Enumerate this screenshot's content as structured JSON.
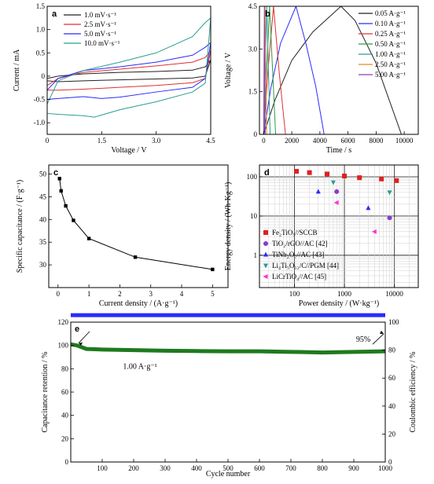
{
  "chart_data": [
    {
      "panel": "a",
      "type": "line",
      "xlabel": "Voltage / V",
      "ylabel": "Current / mA",
      "xlim": [
        0,
        4.5
      ],
      "ylim": [
        -1.25,
        1.5
      ],
      "xticks": [
        0,
        1.5,
        3.0,
        4.5
      ],
      "yticks": [
        -1.0,
        -0.5,
        0,
        0.5,
        1.0,
        1.5
      ],
      "xtick_labels": [
        "0",
        "1.5",
        "3.0",
        "4.5"
      ],
      "ytick_labels": [
        "-1.0",
        "-0.5",
        "0",
        "0.5",
        "1.0",
        "1.5"
      ],
      "legend_position": "top-left",
      "series": [
        {
          "name": "1.0 mV·s⁻¹",
          "color": "#222222",
          "upper": [
            [
              0.0,
              -0.05
            ],
            [
              0.3,
              0.0
            ],
            [
              1.0,
              0.05
            ],
            [
              2.0,
              0.08
            ],
            [
              3.0,
              0.1
            ],
            [
              4.0,
              0.13
            ],
            [
              4.35,
              0.2
            ],
            [
              4.5,
              0.35
            ]
          ],
          "lower": [
            [
              0.0,
              -0.1
            ],
            [
              0.3,
              -0.12
            ],
            [
              1.0,
              -0.1
            ],
            [
              2.0,
              -0.08
            ],
            [
              3.0,
              -0.06
            ],
            [
              4.0,
              -0.04
            ],
            [
              4.35,
              0.0
            ],
            [
              4.5,
              0.35
            ]
          ]
        },
        {
          "name": "2.5 mV·s⁻¹",
          "color": "#e03030",
          "upper": [
            [
              0.0,
              -0.2
            ],
            [
              0.3,
              -0.05
            ],
            [
              1.0,
              0.08
            ],
            [
              2.0,
              0.15
            ],
            [
              3.0,
              0.22
            ],
            [
              4.0,
              0.3
            ],
            [
              4.35,
              0.4
            ],
            [
              4.5,
              0.55
            ]
          ],
          "lower": [
            [
              0.0,
              -0.3
            ],
            [
              0.3,
              -0.3
            ],
            [
              1.0,
              -0.28
            ],
            [
              2.0,
              -0.24
            ],
            [
              3.0,
              -0.2
            ],
            [
              4.0,
              -0.14
            ],
            [
              4.35,
              -0.05
            ],
            [
              4.5,
              0.55
            ]
          ]
        },
        {
          "name": "5.0 mV·s⁻¹",
          "color": "#2a2aff",
          "upper": [
            [
              0.0,
              -0.3
            ],
            [
              0.3,
              -0.05
            ],
            [
              1.0,
              0.12
            ],
            [
              2.0,
              0.2
            ],
            [
              3.0,
              0.3
            ],
            [
              4.0,
              0.45
            ],
            [
              4.35,
              0.62
            ],
            [
              4.5,
              0.72
            ]
          ],
          "lower": [
            [
              0.0,
              -0.5
            ],
            [
              0.3,
              -0.48
            ],
            [
              1.0,
              -0.44
            ],
            [
              1.5,
              -0.48
            ],
            [
              2.0,
              -0.45
            ],
            [
              3.0,
              -0.34
            ],
            [
              4.0,
              -0.24
            ],
            [
              4.35,
              -0.05
            ],
            [
              4.5,
              0.72
            ]
          ]
        },
        {
          "name": "10.0 mV·s⁻¹",
          "color": "#2a9d8f",
          "upper": [
            [
              0.0,
              -0.6
            ],
            [
              0.3,
              -0.1
            ],
            [
              1.0,
              0.12
            ],
            [
              2.0,
              0.3
            ],
            [
              3.0,
              0.5
            ],
            [
              4.0,
              0.85
            ],
            [
              4.35,
              1.15
            ],
            [
              4.5,
              1.25
            ]
          ],
          "lower": [
            [
              0.0,
              -0.8
            ],
            [
              0.3,
              -0.82
            ],
            [
              1.0,
              -0.85
            ],
            [
              1.3,
              -0.88
            ],
            [
              2.0,
              -0.72
            ],
            [
              3.0,
              -0.55
            ],
            [
              4.0,
              -0.34
            ],
            [
              4.35,
              -0.15
            ],
            [
              4.5,
              1.25
            ]
          ]
        }
      ]
    },
    {
      "panel": "b",
      "type": "line",
      "xlabel": "Time / s",
      "ylabel": "Voltage / V",
      "xlim": [
        -300,
        11000
      ],
      "ylim": [
        0,
        4.5
      ],
      "xticks": [
        0,
        2000,
        4000,
        6000,
        8000,
        10000
      ],
      "yticks": [
        0,
        1.5,
        3.0,
        4.5
      ],
      "xtick_labels": [
        "0",
        "2000",
        "4000",
        "6000",
        "8000",
        "10000"
      ],
      "ytick_labels": [
        "0",
        "1.5",
        "3.0",
        "4.5"
      ],
      "legend_position": "top-right",
      "series": [
        {
          "name": "0.05 A·g⁻¹",
          "color": "#222222",
          "points": [
            [
              0,
              0
            ],
            [
              800,
              1.2
            ],
            [
              2000,
              2.6
            ],
            [
              3500,
              3.6
            ],
            [
              5500,
              4.5
            ],
            [
              6500,
              4.0
            ],
            [
              8000,
              2.5
            ],
            [
              9800,
              0
            ]
          ]
        },
        {
          "name": "0.10 A·g⁻¹",
          "color": "#2a2aff",
          "points": [
            [
              0,
              0
            ],
            [
              500,
              1.6
            ],
            [
              1200,
              3.2
            ],
            [
              2300,
              4.5
            ],
            [
              3000,
              3.2
            ],
            [
              3700,
              1.7
            ],
            [
              4300,
              0
            ]
          ]
        },
        {
          "name": "0.25 A·g⁻¹",
          "color": "#e03030",
          "points": [
            [
              0,
              0
            ],
            [
              300,
              2.2
            ],
            [
              700,
              4.5
            ],
            [
              1100,
              2.2
            ],
            [
              1550,
              0
            ]
          ]
        },
        {
          "name": "0.50 A·g⁻¹",
          "color": "#2e9b40",
          "points": [
            [
              0,
              0
            ],
            [
              420,
              4.5
            ],
            [
              850,
              0
            ]
          ]
        },
        {
          "name": "1.00 A·g⁻¹",
          "color": "#2a9d8f",
          "points": [
            [
              0,
              0
            ],
            [
              220,
              4.5
            ],
            [
              460,
              0
            ]
          ]
        },
        {
          "name": "2.50 A·g⁻¹",
          "color": "#e08a20",
          "points": [
            [
              0,
              0
            ],
            [
              100,
              4.5
            ],
            [
              210,
              0
            ]
          ]
        },
        {
          "name": "5.00 A·g⁻¹",
          "color": "#8a3cc8",
          "points": [
            [
              0,
              0
            ],
            [
              50,
              4.5
            ],
            [
              110,
              0
            ]
          ]
        }
      ]
    },
    {
      "panel": "c",
      "type": "line",
      "xlabel": "Current density / (A·g⁻¹)",
      "ylabel": "Specific capacitance / (F·g⁻¹)",
      "xlim": [
        -0.3,
        5.5
      ],
      "ylim": [
        25,
        52
      ],
      "xticks": [
        0,
        1,
        2,
        3,
        4,
        5
      ],
      "yticks": [
        30,
        35,
        40,
        45,
        50
      ],
      "xtick_labels": [
        "0",
        "1",
        "2",
        "3",
        "4",
        "5"
      ],
      "ytick_labels": [
        "30",
        "35",
        "40",
        "45",
        "50"
      ],
      "x": [
        0.05,
        0.1,
        0.25,
        0.5,
        1.0,
        2.5,
        5.0
      ],
      "y": [
        49.0,
        46.3,
        43.0,
        39.8,
        35.8,
        31.7,
        29.0
      ],
      "color": "#000000"
    },
    {
      "panel": "d",
      "type": "scatter",
      "scale": "log-log",
      "xlabel": "Power density / (W·kg⁻¹)",
      "ylabel": "Energy density / (Wh·Kg⁻¹)",
      "xlim": [
        20,
        30000
      ],
      "ylim": [
        0.15,
        200
      ],
      "xticks": [
        100,
        1000,
        10000
      ],
      "yticks": [
        1,
        10,
        100
      ],
      "xtick_labels": [
        "100",
        "1000",
        "10000"
      ],
      "ytick_labels": [
        "1",
        "10",
        "100"
      ],
      "grid": true,
      "legend_position": "bottom-left",
      "series": [
        {
          "name": "Fe₂TiO₅//SCCB",
          "color": "#e02020",
          "marker": "square",
          "points": [
            [
              110,
              138
            ],
            [
              200,
              128
            ],
            [
              450,
              118
            ],
            [
              1000,
              105
            ],
            [
              2000,
              95
            ],
            [
              5500,
              88
            ],
            [
              11000,
              80
            ]
          ]
        },
        {
          "name": "TiO₂/rGO//AC [42]",
          "color": "#8a3cc8",
          "marker": "circle",
          "points": [
            [
              700,
              42
            ],
            [
              8000,
              9
            ]
          ]
        },
        {
          "name": "TiNb₂O₇//AC [43]",
          "color": "#2a2aff",
          "marker": "triangle-up",
          "points": [
            [
              300,
              42
            ],
            [
              3000,
              16
            ]
          ]
        },
        {
          "name": "Li₄Ti₅O₁₂/C//PGM [44]",
          "color": "#2a9d8f",
          "marker": "triangle-down",
          "points": [
            [
              600,
              72
            ],
            [
              8000,
              40
            ]
          ]
        },
        {
          "name": "LiCrTiO₄//AC [45]",
          "color": "#ff33cc",
          "marker": "triangle-left",
          "points": [
            [
              700,
              22
            ],
            [
              4000,
              4
            ]
          ]
        }
      ]
    },
    {
      "panel": "e",
      "type": "line",
      "xlabel": "Cycle number",
      "ylabel": "Capacitance retention / %",
      "y2label": "Coulombic efficiency / %",
      "xlim": [
        0,
        1000
      ],
      "ylim": [
        0,
        120
      ],
      "y2lim": [
        0,
        100
      ],
      "xticks": [
        100,
        200,
        300,
        400,
        500,
        600,
        700,
        800,
        900,
        1000
      ],
      "yticks": [
        0,
        20,
        40,
        60,
        80,
        100,
        120
      ],
      "y2ticks": [
        0,
        20,
        40,
        60,
        80,
        100
      ],
      "xtick_labels": [
        "100",
        "200",
        "300",
        "400",
        "500",
        "600",
        "700",
        "800",
        "900",
        "1000"
      ],
      "ytick_labels": [
        "0",
        "20",
        "40",
        "60",
        "80",
        "100",
        "120"
      ],
      "y2tick_labels": [
        "0",
        "20",
        "40",
        "60",
        "80",
        "100"
      ],
      "annotations": {
        "rate": "1.00 A·g⁻¹",
        "final": "95%"
      },
      "series": [
        {
          "name": "Capacitance retention",
          "color": "#1e7a1e",
          "axis": "left",
          "points": [
            [
              0,
              101
            ],
            [
              20,
              100
            ],
            [
              50,
              97
            ],
            [
              100,
              96.5
            ],
            [
              200,
              96
            ],
            [
              300,
              95.5
            ],
            [
              400,
              95.2
            ],
            [
              500,
              95
            ],
            [
              600,
              95
            ],
            [
              700,
              94.5
            ],
            [
              800,
              94
            ],
            [
              900,
              94.5
            ],
            [
              1000,
              95
            ]
          ]
        },
        {
          "name": "Coulombic efficiency",
          "color": "#2a2aff",
          "axis": "right",
          "points": [
            [
              0,
              105
            ],
            [
              100,
              105
            ],
            [
              300,
              105
            ],
            [
              500,
              105
            ],
            [
              700,
              105
            ],
            [
              900,
              105
            ],
            [
              1000,
              105
            ]
          ]
        }
      ]
    }
  ]
}
